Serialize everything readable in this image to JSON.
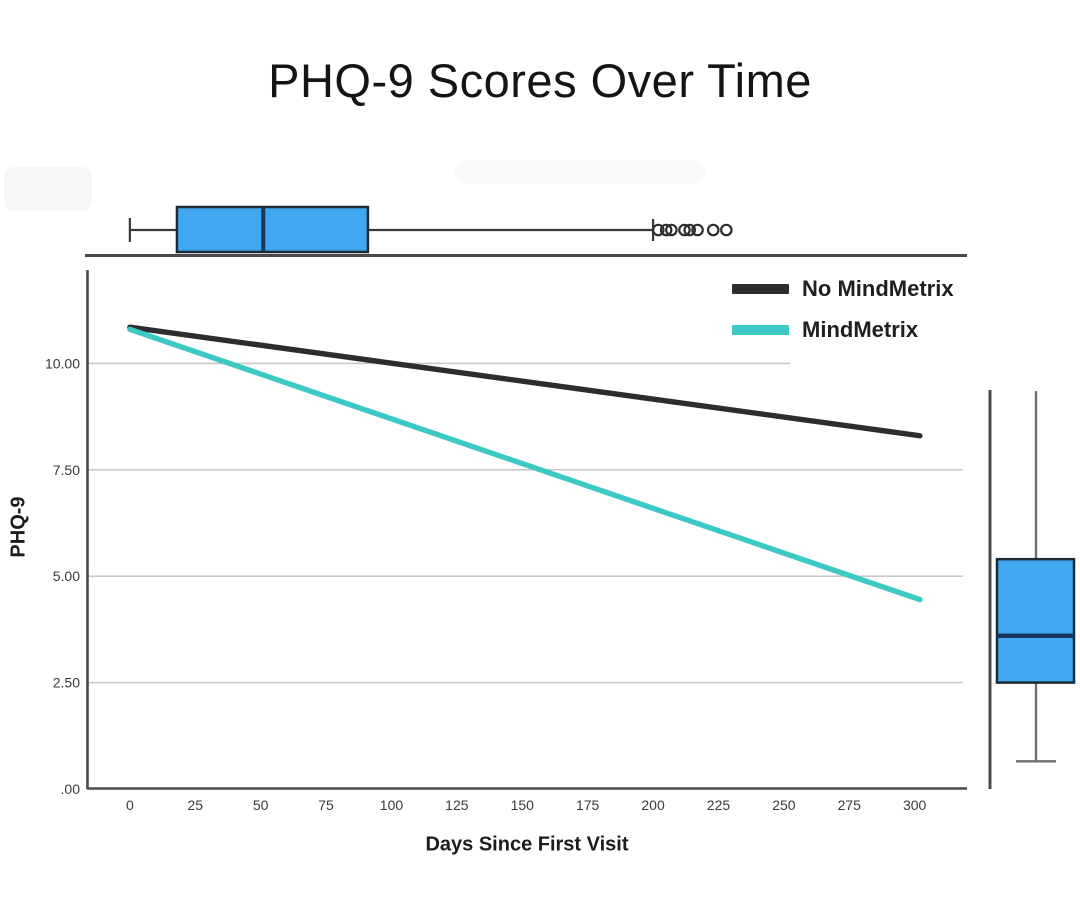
{
  "chart_data": {
    "type": "line",
    "title": "PHQ-9 Scores Over Time",
    "xlabel": "Days Since First Visit",
    "ylabel": "PHQ-9",
    "xlim": [
      -16,
      320
    ],
    "ylim": [
      0,
      12.5
    ],
    "grid": "horizontal",
    "legend_position": "top-right-inside",
    "xticks": {
      "values": [
        0,
        25,
        50,
        75,
        100,
        125,
        150,
        175,
        200,
        225,
        250,
        275,
        300
      ],
      "labels": [
        "0",
        "25",
        "50",
        "75",
        "100",
        "125",
        "150",
        "175",
        "200",
        "225",
        "250",
        "275",
        "300"
      ]
    },
    "yticks": {
      "values": [
        0,
        2.5,
        5,
        7.5,
        10
      ],
      "labels": [
        ".00",
        "2.50",
        "5.00",
        "7.50",
        "10.00"
      ]
    },
    "series": [
      {
        "name": "No MindMetrix",
        "color": "#2d2d2d",
        "points": [
          [
            0,
            10.85
          ],
          [
            302,
            8.3
          ]
        ]
      },
      {
        "name": "MindMetrix",
        "color": "#3cc8c4",
        "points": [
          [
            0,
            10.8
          ],
          [
            302,
            4.45
          ]
        ]
      }
    ],
    "marginal_boxplots": {
      "top": {
        "axis": "x",
        "variable": "Days Since First Visit",
        "whisker_min": 0,
        "q1": 18,
        "median": 51,
        "q3": 91,
        "whisker_max": 200,
        "outliers": [
          202,
          205,
          207,
          212,
          214,
          217,
          223,
          228
        ]
      },
      "right": {
        "axis": "y",
        "variable": "PHQ-9",
        "whisker_min": 0.65,
        "q1": 2.5,
        "median": 3.6,
        "q3": 5.4,
        "whisker_max": 9.35,
        "outliers": []
      }
    },
    "style": {
      "box_fill": "#41a7f0",
      "box_border": "#1e2a33",
      "median_color": "#16365c",
      "whisker_color": "#3a3a3a",
      "right_whisker_color": "#6e6e6e",
      "axis_color": "#4a4a4a",
      "grid_color": "#c9c9c9",
      "tick_text_color": "#3a3a3a",
      "outlier_stroke": "#2d2d2d"
    }
  }
}
